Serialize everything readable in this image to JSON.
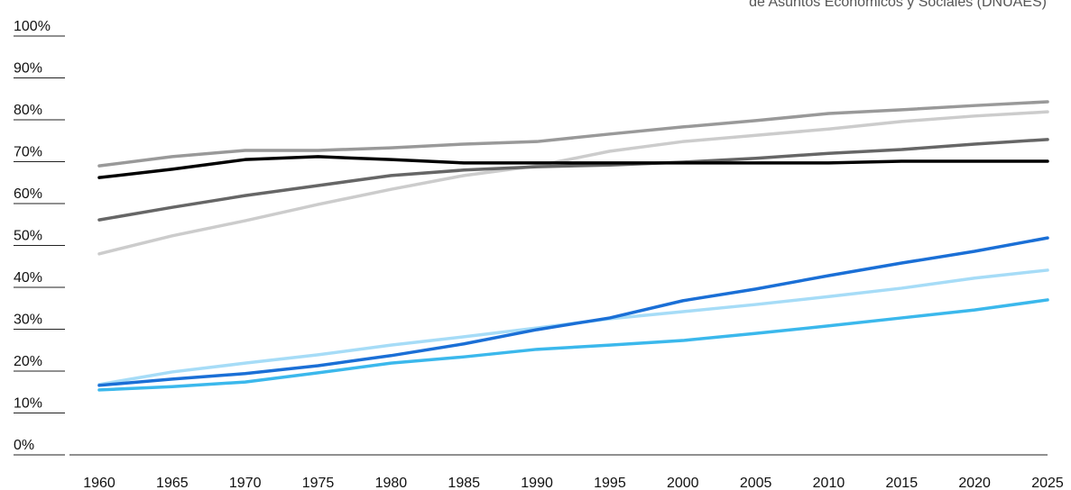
{
  "chart_data": {
    "type": "line",
    "source": "de Asuntos Económicos y Sociales (DNUAES)",
    "x": [
      1960,
      1965,
      1970,
      1975,
      1980,
      1985,
      1990,
      1995,
      2000,
      2005,
      2010,
      2015,
      2020,
      2025
    ],
    "xlim": [
      1960,
      2025
    ],
    "xticks": [
      1960,
      1965,
      1970,
      1975,
      1980,
      1985,
      1990,
      1995,
      2000,
      2005,
      2010,
      2015,
      2020,
      2025
    ],
    "ylim": [
      0,
      100
    ],
    "yticks": [
      {
        "value": 0,
        "label": "0%"
      },
      {
        "value": 10,
        "label": "10%"
      },
      {
        "value": 20,
        "label": "20%"
      },
      {
        "value": 30,
        "label": "30%"
      },
      {
        "value": 40,
        "label": "40%"
      },
      {
        "value": 50,
        "label": "50%"
      },
      {
        "value": 60,
        "label": "60%"
      },
      {
        "value": 70,
        "label": "70%"
      },
      {
        "value": 80,
        "label": "80%"
      },
      {
        "value": 90,
        "label": "90%"
      },
      {
        "value": 100,
        "label": "100%"
      }
    ],
    "series": [
      {
        "color": "#cccccc",
        "values": [
          48.0,
          52.3,
          55.9,
          59.8,
          63.4,
          66.7,
          69.0,
          72.5,
          74.8,
          76.3,
          77.8,
          79.6,
          80.9,
          81.9
        ]
      },
      {
        "color": "#666666",
        "values": [
          56.1,
          59.1,
          61.9,
          64.3,
          66.7,
          68.0,
          68.8,
          69.2,
          69.9,
          70.8,
          72.0,
          72.9,
          74.2,
          75.3
        ]
      },
      {
        "color": "#999999",
        "values": [
          69.0,
          71.2,
          72.7,
          72.7,
          73.3,
          74.2,
          74.8,
          76.6,
          78.3,
          79.8,
          81.5,
          82.4,
          83.4,
          84.3
        ]
      },
      {
        "color": "#000000",
        "values": [
          66.2,
          68.2,
          70.5,
          71.2,
          70.5,
          69.7,
          69.7,
          69.7,
          69.7,
          69.7,
          69.7,
          70.1,
          70.1,
          70.1
        ]
      },
      {
        "color": "#3bb8ec",
        "values": [
          15.5,
          16.3,
          17.4,
          19.6,
          21.9,
          23.4,
          25.2,
          26.2,
          27.3,
          29.0,
          30.8,
          32.7,
          34.6,
          37.0
        ]
      },
      {
        "color": "#a6dcf7",
        "values": [
          16.8,
          19.8,
          21.9,
          23.9,
          26.2,
          28.2,
          30.3,
          32.5,
          34.2,
          35.9,
          37.8,
          39.8,
          42.2,
          44.1
        ]
      },
      {
        "color": "#1a6fd6",
        "values": [
          16.6,
          18.1,
          19.4,
          21.3,
          23.7,
          26.5,
          29.9,
          32.7,
          36.8,
          39.6,
          42.8,
          45.8,
          48.6,
          51.8
        ]
      }
    ]
  }
}
